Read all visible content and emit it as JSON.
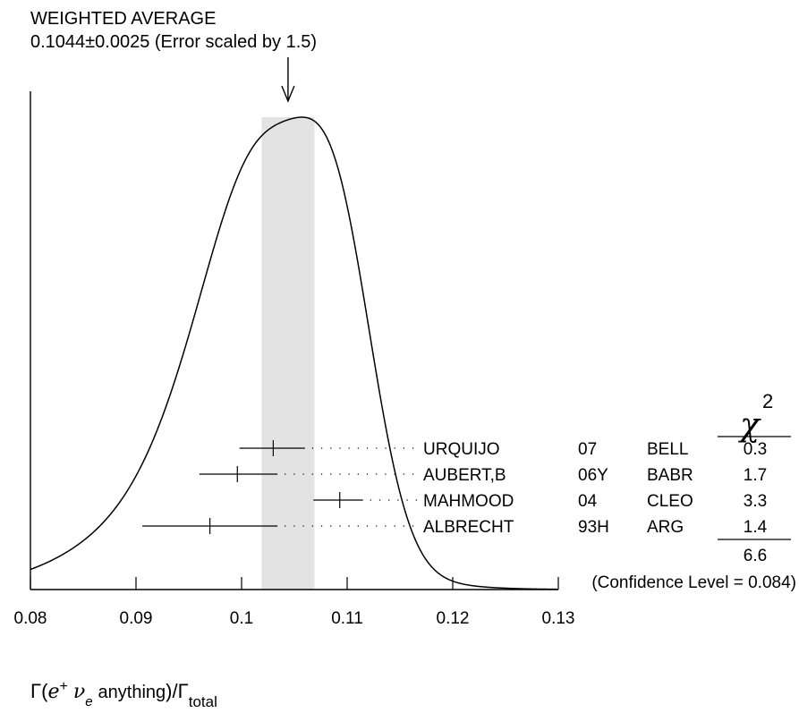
{
  "chart_data": {
    "type": "ideogram",
    "title": "WEIGHTED AVERAGE",
    "subtitle": "0.1044±0.0025 (Error scaled by 1.5)",
    "weighted_average": 0.1044,
    "error": 0.0025,
    "error_scale": 1.5,
    "xlabel": {
      "prefix": "Γ(",
      "particle": "e",
      "particle_sup": "+",
      "neutrino": "ν",
      "neutrino_sub": "e",
      "word": "anything",
      "close": ")/Γ",
      "total_sub": "total"
    },
    "xlim": [
      0.08,
      0.13
    ],
    "x_ticks": [
      0.08,
      0.09,
      0.1,
      0.11,
      0.12,
      0.13
    ],
    "x_tick_labels": [
      "0.08",
      "0.09",
      "0.1",
      "0.11",
      "0.12",
      "0.13"
    ],
    "measurements": [
      {
        "author": "URQUIJO",
        "year": "07",
        "experiment": "BELL",
        "value": 0.103,
        "low": 0.0998,
        "high": 0.106,
        "chi2": "0.3"
      },
      {
        "author": "AUBERT,B",
        "year": "06Y",
        "experiment": "BABR",
        "value": 0.0996,
        "low": 0.096,
        "high": 0.1034,
        "chi2": "1.7"
      },
      {
        "author": "MAHMOOD",
        "year": "04",
        "experiment": "CLEO",
        "value": 0.1093,
        "low": 0.1068,
        "high": 0.1115,
        "chi2": "3.3"
      },
      {
        "author": "ALBRECHT",
        "year": "93H",
        "experiment": "ARG",
        "value": 0.097,
        "low": 0.0906,
        "high": 0.1034,
        "chi2": "1.4"
      }
    ],
    "chi2_header": "χ",
    "chi2_header_sup": "2",
    "chi2_total": "6.6",
    "confidence_level": "(Confidence Level = 0.084)",
    "band_color": "#e3e3e3"
  }
}
